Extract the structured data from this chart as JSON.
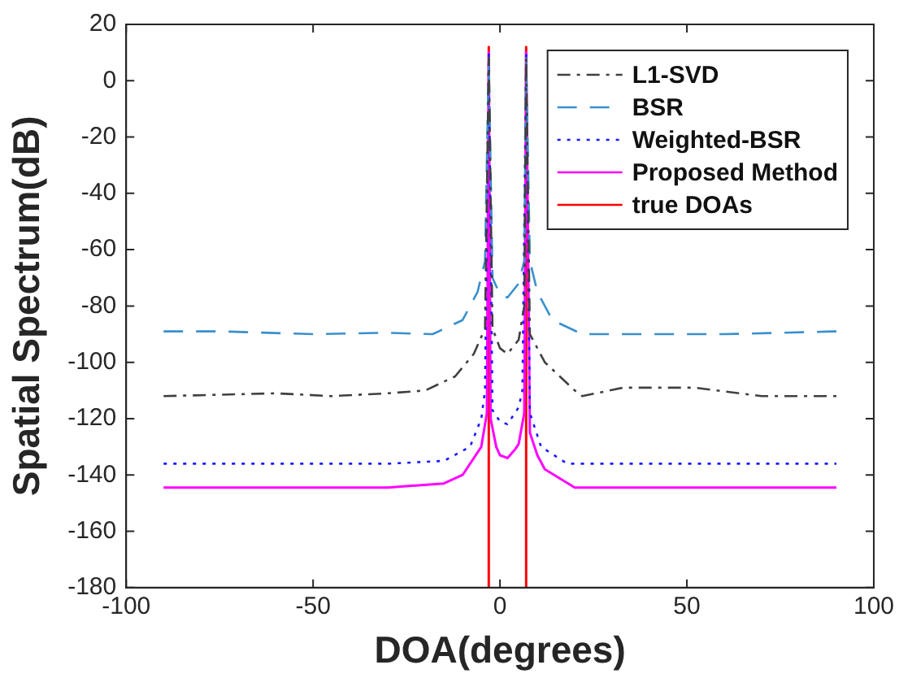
{
  "chart_data": {
    "type": "line",
    "xlabel": "DOA(degrees)",
    "ylabel": "Spatial Spectrum(dB)",
    "xlim": [
      -100,
      100
    ],
    "ylim": [
      -180,
      20
    ],
    "xticks": [
      -100,
      -50,
      0,
      50,
      100
    ],
    "yticks": [
      20,
      0,
      -20,
      -40,
      -60,
      -80,
      -100,
      -120,
      -140,
      -160,
      -180
    ],
    "grid": false,
    "legend": "top right",
    "marker": "none",
    "series": [
      {
        "name": "L1-SVD",
        "color": "#404040",
        "line_style": "dashdot",
        "x": [
          -90,
          -75,
          -60,
          -45,
          -30,
          -20,
          -12,
          -7,
          -4,
          -3,
          -2,
          0,
          2,
          5,
          6.5,
          7,
          8,
          12,
          20,
          22,
          33,
          52,
          70,
          90
        ],
        "values": [
          -112,
          -111.5,
          -111,
          -112,
          -111,
          -110,
          -105,
          -97,
          -88,
          8,
          -88,
          -95,
          -97,
          -92,
          -80,
          8,
          -90,
          -100,
          -110,
          -112,
          -109,
          -109,
          -112,
          -112
        ]
      },
      {
        "name": "BSR",
        "color": "#3a8fcc",
        "line_style": "dashed",
        "x": [
          -90,
          -75,
          -50,
          -30,
          -18,
          -10,
          -6,
          -4,
          -3,
          -2,
          0,
          2,
          5,
          6.5,
          7,
          8,
          10,
          14,
          22,
          40,
          60,
          75,
          90
        ],
        "values": [
          -89,
          -89,
          -90,
          -89.5,
          -90,
          -85,
          -75,
          -64,
          8,
          -70,
          -76,
          -77,
          -72,
          -64,
          8,
          -64,
          -75,
          -85,
          -90,
          -90,
          -90,
          -89.5,
          -89
        ]
      },
      {
        "name": "Weighted-BSR",
        "color": "#1a1aff",
        "line_style": "dotted",
        "x": [
          -90,
          -60,
          -30,
          -15,
          -8,
          -5,
          -4,
          -3,
          -2,
          0,
          2,
          5,
          6,
          7,
          8,
          11,
          18,
          40,
          60,
          90
        ],
        "values": [
          -136,
          -136,
          -136,
          -135,
          -130,
          -120,
          -110,
          10,
          -117,
          -121,
          -122,
          -116,
          -110,
          10,
          -118,
          -130,
          -136,
          -136,
          -136,
          -136
        ]
      },
      {
        "name": "Proposed Method",
        "color": "#ff00ff",
        "line_style": "solid",
        "x": [
          -90,
          -60,
          -30,
          -15,
          -10,
          -5,
          -3.5,
          -3,
          -2.5,
          -1,
          0,
          2,
          4,
          5,
          6.5,
          7,
          8,
          10,
          12,
          20,
          50,
          90
        ],
        "values": [
          -144.5,
          -144.5,
          -144.5,
          -143,
          -140,
          -130,
          -118,
          10,
          -120,
          -130,
          -133,
          -134,
          -131,
          -129,
          -118,
          10,
          -125,
          -133,
          -138,
          -144.5,
          -144.5,
          -144.5
        ]
      },
      {
        "name": "true DOAs",
        "color": "#ff0000",
        "line_style": "solid",
        "x": [
          -3,
          -3,
          null,
          7,
          7
        ],
        "values": [
          12,
          -180,
          null,
          12,
          -180
        ]
      }
    ]
  }
}
